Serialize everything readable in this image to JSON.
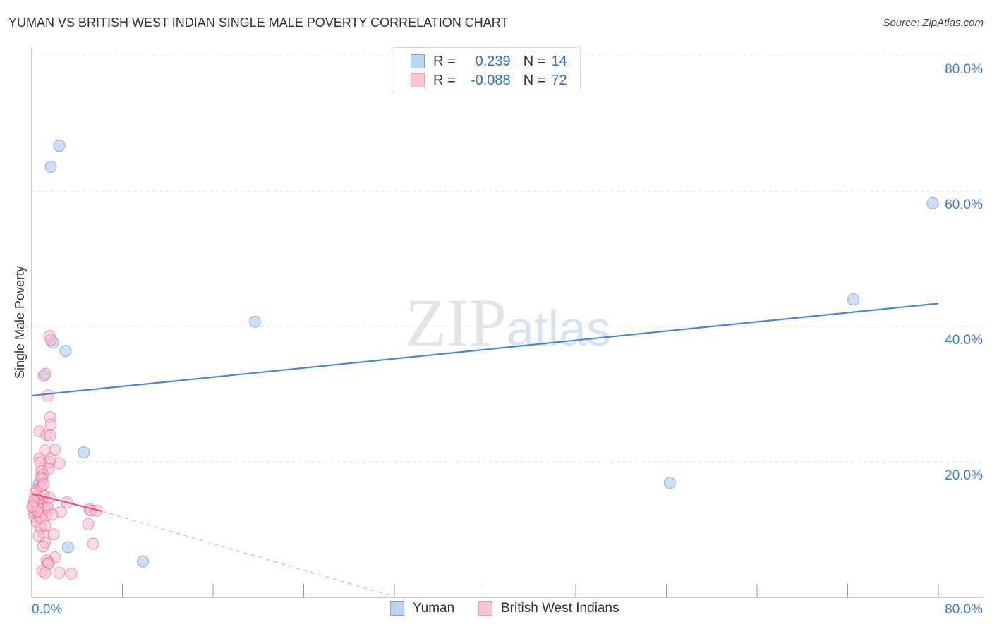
{
  "title": "YUMAN VS BRITISH WEST INDIAN SINGLE MALE POVERTY CORRELATION CHART",
  "source": "Source: ZipAtlas.com",
  "watermark": "ZIPatlas",
  "legend": [
    {
      "r_label": "R =",
      "r": "0.239",
      "n_label": "N =",
      "n": "14"
    },
    {
      "r_label": "R =",
      "r": "-0.088",
      "n_label": "N =",
      "n": "72"
    }
  ],
  "chart_data": {
    "type": "scatter",
    "title": "YUMAN VS BRITISH WEST INDIAN SINGLE MALE POVERTY CORRELATION CHART",
    "xlabel": "",
    "ylabel": "Single Male Poverty",
    "xlim": [
      0,
      80
    ],
    "ylim": [
      0,
      80
    ],
    "x_tick_labels": [
      "0.0%",
      "80.0%"
    ],
    "y_tick_labels": [
      {
        "v": 20,
        "label": "20.0%"
      },
      {
        "v": 40,
        "label": "40.0%"
      },
      {
        "v": 60,
        "label": "60.0%"
      },
      {
        "v": 80,
        "label": "80.0%"
      }
    ],
    "grid": true,
    "legend_placement": "top-center",
    "series": [
      {
        "name": "Yuman",
        "color": "#4a86d8",
        "fill": "#bcd3f3",
        "trend": [
          [
            0,
            29.8
          ],
          [
            80,
            43.4
          ]
        ],
        "points": [
          [
            2.43,
            66.7
          ],
          [
            1.68,
            63.6
          ],
          [
            79.5,
            58.2
          ],
          [
            72.5,
            44.0
          ],
          [
            19.7,
            40.7
          ],
          [
            1.87,
            37.6
          ],
          [
            2.99,
            36.4
          ],
          [
            1.06,
            32.7
          ],
          [
            4.6,
            21.4
          ],
          [
            56.3,
            16.9
          ],
          [
            0.62,
            16.7
          ],
          [
            3.2,
            7.4
          ],
          [
            9.8,
            5.3
          ],
          [
            0.44,
            13.8
          ]
        ]
      },
      {
        "name": "British West Indians",
        "color": "#e8507f",
        "fill": "#f7bfd0",
        "trend": [
          [
            0,
            15.3
          ],
          [
            6.2,
            12.7
          ]
        ],
        "trend_dashed": [
          [
            6.2,
            12.7
          ],
          [
            31.8,
            0.2
          ]
        ],
        "points": [
          [
            1.56,
            38.6
          ],
          [
            1.68,
            38.0
          ],
          [
            1.18,
            33.0
          ],
          [
            1.43,
            29.8
          ],
          [
            1.62,
            26.6
          ],
          [
            1.68,
            25.5
          ],
          [
            0.68,
            24.5
          ],
          [
            1.31,
            24.0
          ],
          [
            1.62,
            23.9
          ],
          [
            1.18,
            21.7
          ],
          [
            2.05,
            21.8
          ],
          [
            0.68,
            20.5
          ],
          [
            0.75,
            19.9
          ],
          [
            1.56,
            20.0
          ],
          [
            2.43,
            19.8
          ],
          [
            1.49,
            19.0
          ],
          [
            0.87,
            18.6
          ],
          [
            1.0,
            18.1
          ],
          [
            0.81,
            17.7
          ],
          [
            0.93,
            17.5
          ],
          [
            0.44,
            15.8
          ],
          [
            1.06,
            15.0
          ],
          [
            0.31,
            14.8
          ],
          [
            0.5,
            14.5
          ],
          [
            0.62,
            14.1
          ],
          [
            0.19,
            13.8
          ],
          [
            0.44,
            13.4
          ],
          [
            0.93,
            13.6
          ],
          [
            1.31,
            13.4
          ],
          [
            3.11,
            14.0
          ],
          [
            0.31,
            13.0
          ],
          [
            0.75,
            13.0
          ],
          [
            1.12,
            13.0
          ],
          [
            1.43,
            13.2
          ],
          [
            0.19,
            12.5
          ],
          [
            0.56,
            12.4
          ],
          [
            2.55,
            12.6
          ],
          [
            5.1,
            13.0
          ],
          [
            5.23,
            12.8
          ],
          [
            5.73,
            12.8
          ],
          [
            0.25,
            11.9
          ],
          [
            0.68,
            11.9
          ],
          [
            1.31,
            12.0
          ],
          [
            0.44,
            11.1
          ],
          [
            4.98,
            10.8
          ],
          [
            0.81,
            10.3
          ],
          [
            1.06,
            9.4
          ],
          [
            1.93,
            9.3
          ],
          [
            1.18,
            8.1
          ],
          [
            1.0,
            7.5
          ],
          [
            5.42,
            7.9
          ],
          [
            2.05,
            5.9
          ],
          [
            1.31,
            5.4
          ],
          [
            1.49,
            5.1
          ],
          [
            1.43,
            4.9
          ],
          [
            0.93,
            3.9
          ],
          [
            1.18,
            3.6
          ],
          [
            2.43,
            3.6
          ],
          [
            3.49,
            3.5
          ],
          [
            0.56,
            13.2
          ],
          [
            0.81,
            11.7
          ],
          [
            0.31,
            15.3
          ],
          [
            0.87,
            16.4
          ],
          [
            1.06,
            16.7
          ],
          [
            0.19,
            14.2
          ],
          [
            0.5,
            12.7
          ],
          [
            0.06,
            13.4
          ],
          [
            1.56,
            14.7
          ],
          [
            1.18,
            10.6
          ],
          [
            1.68,
            20.5
          ],
          [
            0.62,
            9.1
          ],
          [
            1.81,
            12.2
          ]
        ]
      }
    ]
  }
}
